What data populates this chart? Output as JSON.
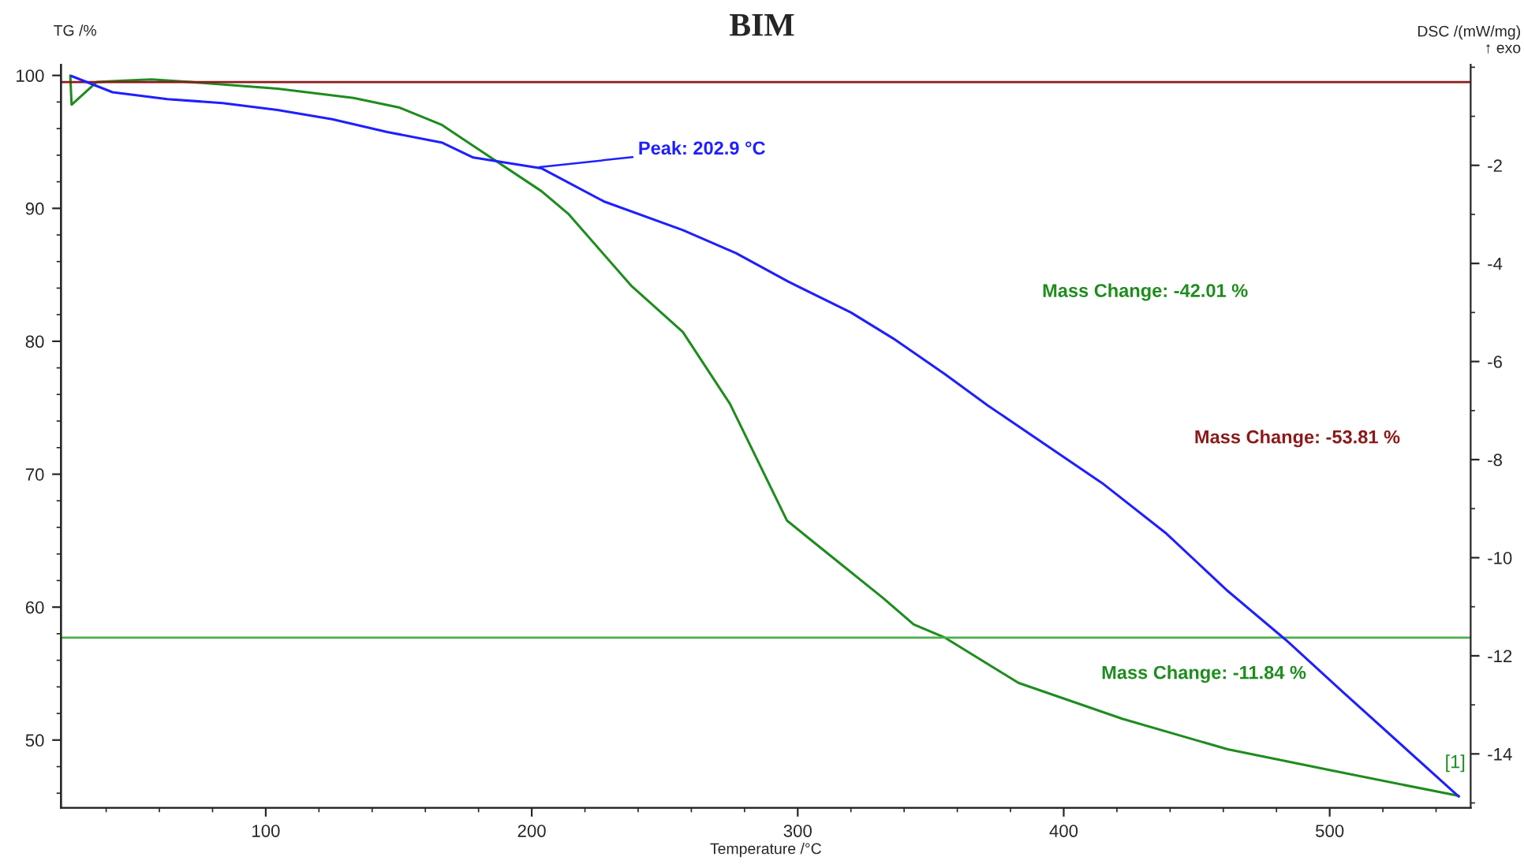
{
  "chart_data": {
    "type": "line",
    "title": "BIM",
    "xlabel": "Temperature /°C",
    "ylabel": "TG /%",
    "y2label": "DSC /(mW/mg)\n↑ exo",
    "xlim": [
      23,
      553
    ],
    "xticks": [
      100,
      200,
      300,
      400,
      500
    ],
    "ylim": [
      44.9,
      100.8
    ],
    "yticks": [
      50,
      60,
      70,
      80,
      90,
      100
    ],
    "y2lim": [
      -15.1,
      0.05
    ],
    "y2ticks": [
      -2,
      -4,
      -6,
      -8,
      -10,
      -12,
      -14
    ],
    "grid": false,
    "series": [
      {
        "color": "#1e8c1e",
        "axis": "y",
        "x": [
          26.5,
          27,
          36.4,
          45,
          57,
          72,
          104.5,
          133,
          150,
          166,
          178,
          203.6,
          213.7,
          237.3,
          256.8,
          274.5,
          296,
          314,
          332,
          343.6,
          355.4,
          383,
          422,
          461.7,
          501,
          548.5
        ],
        "values": [
          100.0,
          97.8,
          99.5,
          99.6,
          99.7,
          99.5,
          99.0,
          98.3,
          97.6,
          96.3,
          94.7,
          91.3,
          89.6,
          84.2,
          80.7,
          75.3,
          66.5,
          63.6,
          60.7,
          58.7,
          57.7,
          54.3,
          51.6,
          49.3,
          47.7,
          45.8
        ]
      },
      {
        "color": "#1f1fff",
        "axis": "y2",
        "x": [
          27,
          42.4,
          63,
          83.7,
          104.4,
          125,
          145.7,
          166.4,
          178,
          203.6,
          227.3,
          256.8,
          276.8,
          296.4,
          320,
          335.9,
          355.4,
          371.3,
          414.5,
          438.2,
          461.7,
          483.6,
          504.8,
          548.5
        ],
        "values": [
          -0.18,
          -0.51,
          -0.65,
          -0.73,
          -0.87,
          -1.06,
          -1.32,
          -1.54,
          -1.84,
          -2.06,
          -2.74,
          -3.32,
          -3.79,
          -4.37,
          -5.0,
          -5.53,
          -6.26,
          -6.89,
          -8.48,
          -9.49,
          -10.68,
          -11.68,
          -12.73,
          -14.87
        ]
      }
    ],
    "ref_lines": [
      {
        "axis": "y",
        "value": 99.5,
        "color": "#8b1a1a"
      },
      {
        "axis": "y",
        "value": 57.7,
        "color": "#4caf4c"
      }
    ],
    "annotations": [
      {
        "text": "Peak: 202.9 °C",
        "x": 202.9,
        "y": 93.1
      },
      "Mass Change: -42.01 %",
      "Mass Change: -53.81 %",
      "Mass Change: -11.84 %",
      "[1]"
    ]
  }
}
